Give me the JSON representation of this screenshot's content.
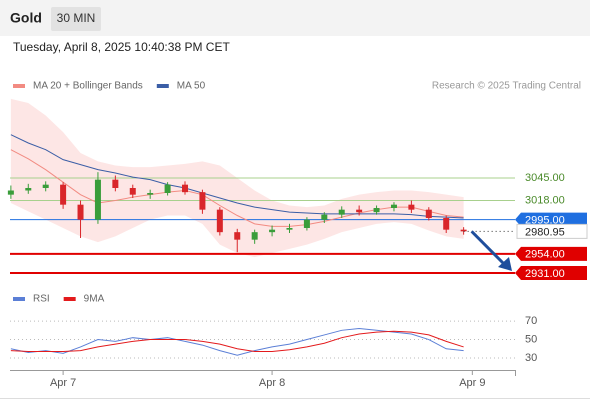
{
  "header": {
    "symbol": "Gold",
    "timeframe": "30 MIN",
    "datetime": "Tuesday, April 8, 2025 10:40:38 PM CET",
    "credit": "Research © 2025 Trading Central"
  },
  "chart_data": [
    {
      "type": "candlestick",
      "x": [
        -6,
        -4,
        -2,
        0,
        2,
        4,
        6,
        8,
        10,
        12,
        14,
        16,
        18,
        20,
        22,
        24,
        26,
        28,
        30,
        32,
        34,
        36,
        38,
        40,
        42,
        44,
        46
      ],
      "open": [
        3025,
        3030,
        3033,
        3037,
        3013,
        2995,
        3043,
        3033,
        3025,
        3027,
        3037,
        3028,
        3007,
        2980,
        2971,
        2980,
        2983,
        2985,
        2995,
        3001,
        3007,
        3004,
        3009,
        3013,
        3007,
        2997,
        2983
      ],
      "high": [
        3036,
        3038,
        3041,
        3040,
        3018,
        3052,
        3048,
        3037,
        3031,
        3040,
        3041,
        3031,
        3010,
        2984,
        2983,
        2988,
        2990,
        2998,
        3004,
        3011,
        3012,
        3012,
        3016,
        3018,
        3010,
        3000,
        2986
      ],
      "low": [
        3020,
        3026,
        3029,
        3008,
        2973,
        2990,
        3029,
        3021,
        3020,
        3024,
        3025,
        3002,
        2976,
        2956,
        2966,
        2975,
        2979,
        2982,
        2991,
        2997,
        3000,
        3001,
        3005,
        3003,
        2994,
        2979,
        2977
      ],
      "close": [
        3030,
        3033,
        3037,
        3013,
        2995,
        3043,
        3033,
        3025,
        3027,
        3037,
        3028,
        3007,
        2980,
        2971,
        2980,
        2983,
        2985,
        2995,
        3001,
        3007,
        3004,
        3009,
        3013,
        3007,
        2997,
        2983,
        2980.95
      ],
      "up_color": "#3a9d3a",
      "down_color": "#d9262a",
      "series": [
        {
          "name": "MA 20 + Bollinger Bands",
          "color": "#f28b82",
          "band_color": "#fde0de",
          "values": [
            3079,
            3068,
            3055,
            3040,
            3025,
            3015,
            3018,
            3022,
            3025,
            3028,
            3030,
            3025,
            3012,
            3000,
            2990,
            2987,
            2987,
            2989,
            2993,
            2998,
            3003,
            3007,
            3010,
            3010,
            3005,
            3000,
            2998
          ],
          "upper": [
            3140,
            3135,
            3120,
            3100,
            3075,
            3065,
            3060,
            3058,
            3058,
            3060,
            3062,
            3065,
            3060,
            3045,
            3030,
            3018,
            3012,
            3010,
            3012,
            3020,
            3025,
            3028,
            3030,
            3030,
            3028,
            3025,
            3022
          ],
          "lower": [
            3015,
            3005,
            2995,
            2985,
            2975,
            2968,
            2975,
            2985,
            2995,
            3000,
            3000,
            2990,
            2965,
            2955,
            2950,
            2955,
            2960,
            2965,
            2972,
            2980,
            2985,
            2990,
            2992,
            2990,
            2982,
            2975,
            2972
          ]
        },
        {
          "name": "MA 50",
          "color": "#3b5ea6",
          "values": [
            3097,
            3087,
            3079,
            3067,
            3061,
            3055,
            3051,
            3046,
            3043,
            3037,
            3033,
            3027,
            3021,
            3015,
            3010,
            3007,
            3004,
            3003,
            3002,
            3002,
            3002,
            3002,
            3002,
            3001,
            2999,
            2998,
            2997
          ]
        }
      ],
      "levels": [
        {
          "value": 3045,
          "label": "3045.00",
          "color": "#a8d08d",
          "boxed": false
        },
        {
          "value": 3018,
          "label": "3018.00",
          "color": "#a8d08d",
          "boxed": false
        },
        {
          "value": 2995,
          "label": "2995.00",
          "color": "#1f6fe0",
          "boxed": true
        },
        {
          "value": 2954,
          "label": "2954.00",
          "color": "#e00000",
          "boxed": true
        },
        {
          "value": 2931,
          "label": "2931.00",
          "color": "#e00000",
          "boxed": true
        }
      ],
      "current": {
        "value": 2980.95,
        "label": "2980.95"
      },
      "xlim": [
        -6.1,
        51.9
      ],
      "ylim": [
        2916.6,
        3144.6
      ],
      "xticks": [
        {
          "value": 0,
          "label": "Apr 7"
        },
        {
          "value": 24,
          "label": "Apr 8"
        },
        {
          "value": 47,
          "label": "Apr 9"
        }
      ]
    },
    {
      "type": "line",
      "series": [
        {
          "name": "RSI",
          "color": "#5b7fd6",
          "values": [
            40,
            36,
            38,
            35,
            42,
            50,
            48,
            52,
            50,
            52,
            48,
            44,
            38,
            33,
            38,
            42,
            45,
            50,
            55,
            60,
            62,
            60,
            58,
            56,
            50,
            40,
            38
          ]
        },
        {
          "name": "9MA",
          "color": "#e31a1c",
          "values": [
            38,
            37,
            37,
            37,
            38,
            42,
            45,
            48,
            50,
            50,
            50,
            48,
            45,
            40,
            37,
            37,
            39,
            42,
            46,
            52,
            56,
            58,
            59,
            58,
            55,
            48,
            42
          ]
        }
      ],
      "ylim": [
        17,
        82
      ],
      "yticks": [
        70,
        50,
        30
      ]
    }
  ]
}
